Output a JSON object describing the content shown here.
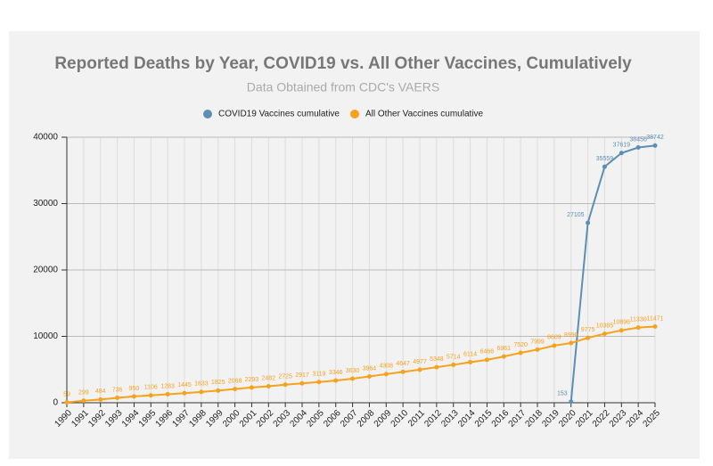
{
  "chart_data": {
    "type": "line",
    "title": "Reported Deaths by Year, COVID19 vs. All Other Vaccines, Cumulatively",
    "subtitle": "Data Obtained from CDC's VAERS",
    "categories": [
      "1990",
      "1991",
      "1992",
      "1993",
      "1994",
      "1995",
      "1996",
      "1997",
      "1998",
      "1999",
      "2000",
      "2001",
      "2002",
      "2003",
      "2004",
      "2005",
      "2006",
      "2007",
      "2008",
      "2009",
      "2010",
      "2011",
      "2012",
      "2013",
      "2014",
      "2015",
      "2016",
      "2017",
      "2018",
      "2019",
      "2020",
      "2021",
      "2022",
      "2023",
      "2024",
      "2025"
    ],
    "series": [
      {
        "name": "COVID19 Vaccines cumulative",
        "color": "#5b8fb3",
        "values": [
          null,
          null,
          null,
          null,
          null,
          null,
          null,
          null,
          null,
          null,
          null,
          null,
          null,
          null,
          null,
          null,
          null,
          null,
          null,
          null,
          null,
          null,
          null,
          null,
          null,
          null,
          null,
          null,
          null,
          null,
          153,
          27105,
          35559,
          37619,
          38456,
          38742
        ]
      },
      {
        "name": "All Other Vaccines cumulative",
        "color": "#f7a21b",
        "values": [
          59,
          299,
          484,
          736,
          950,
          1106,
          1283,
          1445,
          1633,
          1825,
          2068,
          2293,
          2482,
          2725,
          2917,
          3119,
          3346,
          3630,
          3964,
          4308,
          4647,
          4977,
          5348,
          5714,
          6114,
          6466,
          6961,
          7520,
          7999,
          8609,
          8990,
          9775,
          10385,
          10896,
          11330,
          11471
        ]
      }
    ],
    "ylim": [
      0,
      40000
    ],
    "yticks": [
      0,
      10000,
      20000,
      30000,
      40000
    ],
    "grid": true,
    "legend": "top"
  }
}
